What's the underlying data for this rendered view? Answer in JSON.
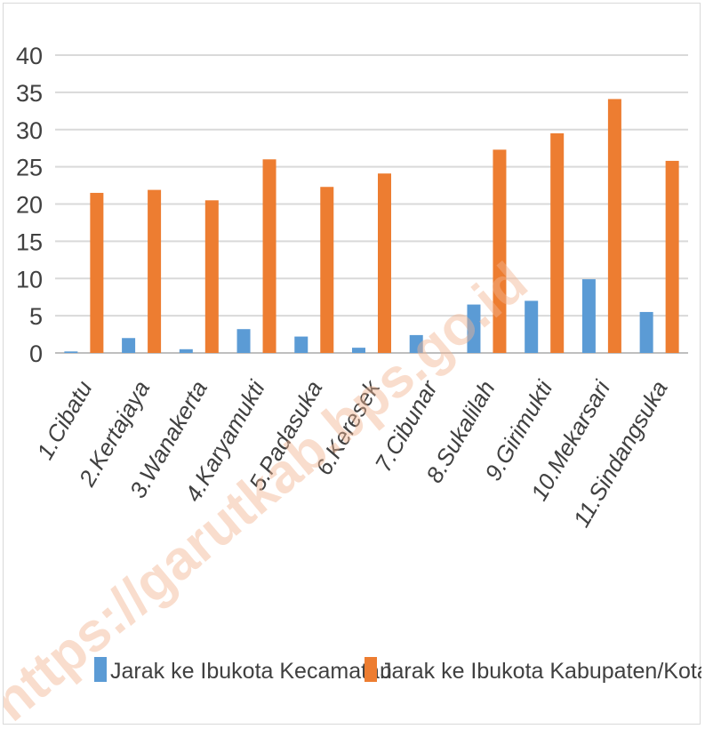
{
  "watermark": "https://garutkab.bps.go.id",
  "chart_data": {
    "type": "bar",
    "categories": [
      "1.Cibatu",
      "2.Kertajaya",
      "3.Wanakerta",
      "4.Karyamukti",
      "5.Padasuka",
      "6.Keresek",
      "7.Cibunar",
      "8.Sukalilah",
      "9.Girimukti",
      "10.Mekarsari",
      "11.Sindangsuka"
    ],
    "series": [
      {
        "name": "Jarak ke Ibukota Kecamatan",
        "color": "#5b9bd5",
        "values": [
          0.2,
          2.0,
          0.5,
          3.2,
          2.2,
          0.7,
          2.4,
          6.5,
          7.0,
          9.9,
          5.5
        ]
      },
      {
        "name": "Jarak ke Ibukota Kabupaten/Kota",
        "color": "#ed7d31",
        "values": [
          21.5,
          21.9,
          20.5,
          26.0,
          22.3,
          24.1,
          0,
          27.3,
          29.5,
          34.1,
          25.8
        ]
      }
    ],
    "yticks": [
      "0",
      "5",
      "10",
      "15",
      "20",
      "25",
      "30",
      "35",
      "40"
    ],
    "ylim": [
      0,
      40
    ],
    "grid": true,
    "legend_position": "bottom",
    "title": "",
    "xlabel": "",
    "ylabel": ""
  }
}
